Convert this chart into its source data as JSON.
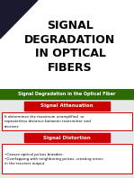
{
  "title_lines": [
    "SIGNAL",
    "DEGRADATION",
    "IN OPTICAL",
    "FIBERS"
  ],
  "title_color": "#000000",
  "title_bg": "#ffffff",
  "slide2_header": "Signal Degradation in the Optical Fiber",
  "slide2_header_bg": "#2d6a00",
  "slide2_header_text_color": "#ffffff",
  "box1_label": "Signal Attenuation",
  "box1_label_bg": "#cc0000",
  "box1_label_text": "#ffffff",
  "box1_border": "#cc0000",
  "box1_text": "It determines the maximum unamplified  or\nrepeaterless distance between transmitter and\nreceiver.",
  "box1_text_color": "#000000",
  "box2_label": "Signal Distortion",
  "box2_label_bg": "#cc0000",
  "box2_label_text": "#ffffff",
  "box2_border": "#cc0000",
  "box2_text": "•Causes optical pulses broaden.\n•Overlapping with neighboring pulses, creating errors\nin the receiver output.",
  "box2_text_color": "#000000",
  "bg_color": "#e8e8e8",
  "triangle_color": "#1a1a2e",
  "content_bg": "#e8e8e8"
}
